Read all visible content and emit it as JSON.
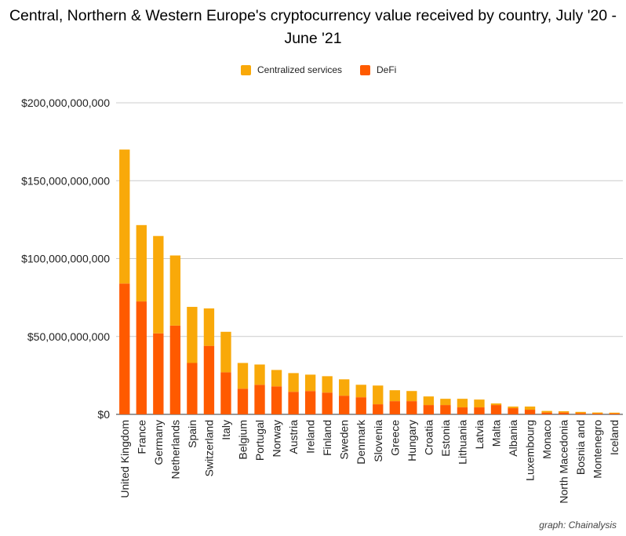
{
  "chart_data": {
    "type": "bar",
    "stacked": true,
    "title": "Central, Northern & Western Europe's cryptocurrency value received by country, July '20 - June '21",
    "xlabel": "",
    "ylabel": "",
    "ylim": [
      0,
      200000000000
    ],
    "yticks": [
      0,
      50000000000,
      100000000000,
      150000000000,
      200000000000
    ],
    "ytick_labels": [
      "$0",
      "$50,000,000,000",
      "$100,000,000,000",
      "$150,000,000,000",
      "$200,000,000,000"
    ],
    "grid": true,
    "legend_position": "top",
    "categories": [
      "United Kingdom",
      "France",
      "Germany",
      "Netherlands",
      "Spain",
      "Switzerland",
      "Italy",
      "Belgium",
      "Portugal",
      "Norway",
      "Austria",
      "Ireland",
      "Finland",
      "Sweden",
      "Denmark",
      "Slovenia",
      "Greece",
      "Hungary",
      "Croatia",
      "Estonia",
      "Lithuania",
      "Latvia",
      "Malta",
      "Albania",
      "Luxembourg",
      "Monaco",
      "North Macedonia",
      "Bosnia and",
      "Montenegro",
      "Iceland"
    ],
    "series": [
      {
        "name": "DeFi",
        "color": "#ff5a00",
        "values": [
          84000000000,
          72500000000,
          52000000000,
          57000000000,
          33000000000,
          44000000000,
          27000000000,
          16500000000,
          19000000000,
          18000000000,
          14500000000,
          15000000000,
          14000000000,
          12000000000,
          11000000000,
          6500000000,
          8500000000,
          8500000000,
          6000000000,
          6000000000,
          4500000000,
          4500000000,
          6000000000,
          4000000000,
          3000000000,
          1200000000,
          1200000000,
          800000000,
          500000000,
          500000000
        ]
      },
      {
        "name": "Centralized services",
        "color": "#f9a909",
        "values": [
          86000000000,
          49000000000,
          62500000000,
          45000000000,
          36000000000,
          24000000000,
          26000000000,
          16500000000,
          13000000000,
          10500000000,
          12000000000,
          10500000000,
          10500000000,
          10500000000,
          8000000000,
          12000000000,
          7000000000,
          6500000000,
          5500000000,
          4000000000,
          5500000000,
          5000000000,
          1000000000,
          1000000000,
          2000000000,
          1000000000,
          800000000,
          800000000,
          700000000,
          600000000
        ]
      }
    ]
  },
  "credit": "graph: Chainalysis"
}
